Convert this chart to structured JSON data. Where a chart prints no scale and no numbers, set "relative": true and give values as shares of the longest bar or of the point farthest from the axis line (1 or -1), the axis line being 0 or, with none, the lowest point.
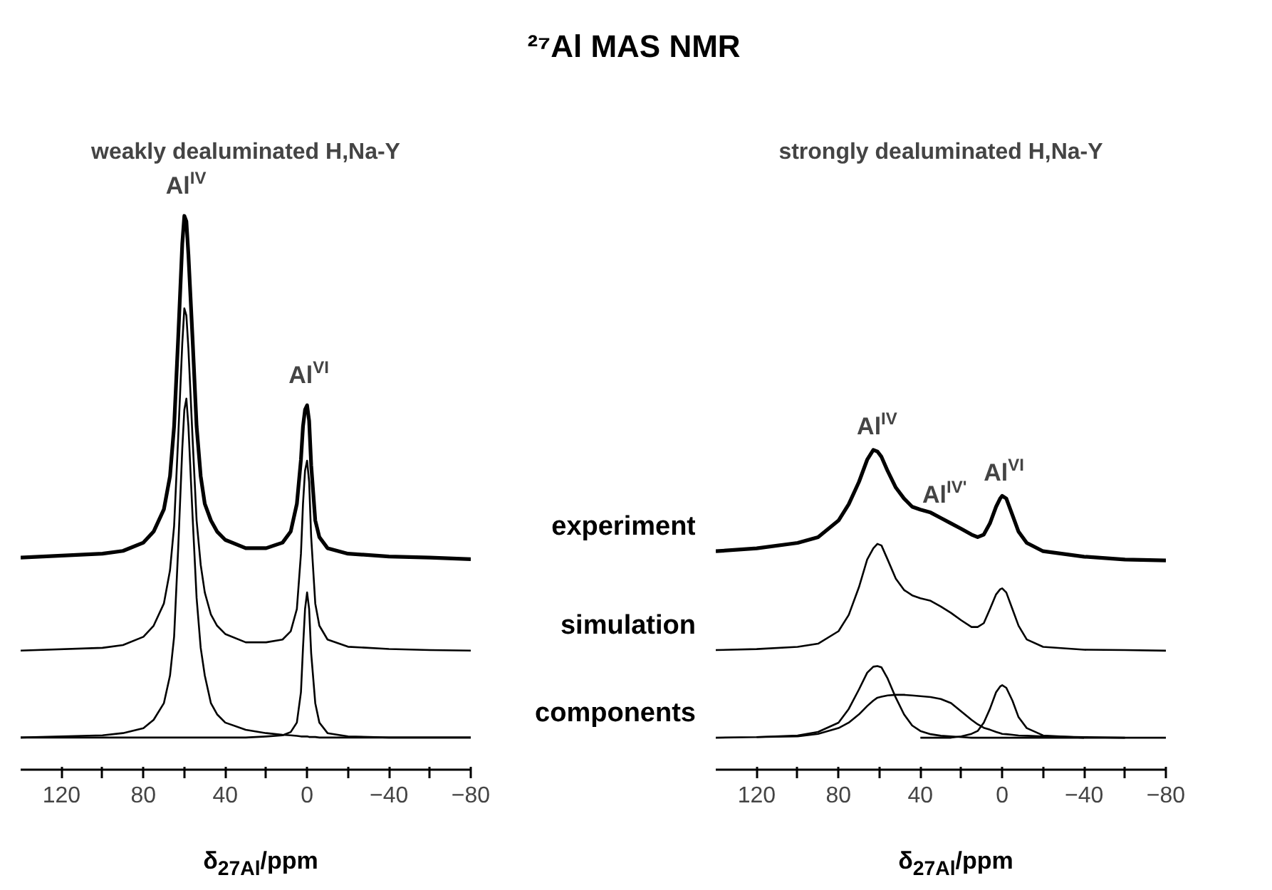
{
  "chart_data": [
    {
      "type": "line",
      "title": "weakly dealuminated H,Na-Y",
      "xlabel": "δ$_{27Al}$/ppm",
      "relative": true,
      "grid": false,
      "tick_labels": "x",
      "xlim": [
        140,
        -80
      ],
      "xticks": [
        120,
        {
          "value": 100,
          "label": null
        },
        80,
        {
          "value": 60,
          "label": null
        },
        40,
        {
          "value": 20,
          "label": null
        },
        0,
        {
          "value": -20,
          "label": null
        },
        -40,
        {
          "value": -60,
          "label": null
        },
        -80
      ],
      "annotations": [
        "²⁷Al MAS NMR",
        {
          "text": "Al$^{IV}$",
          "x": 60,
          "y": 1.0
        },
        {
          "text": "Al$^{VI}$",
          "x": 0,
          "y": 0.658
        }
      ],
      "x": [
        140,
        100,
        90,
        80,
        75,
        70,
        67,
        65,
        63,
        61,
        60,
        59,
        58,
        56,
        54,
        52,
        50,
        47,
        44,
        40,
        30,
        20,
        12,
        8,
        5,
        3,
        2,
        1,
        0,
        -1,
        -2,
        -4,
        -6,
        -10,
        -20,
        -40,
        -60,
        -80
      ],
      "series": [
        {
          "color": "#000000",
          "values": [
            0.383,
            0.39,
            0.395,
            0.41,
            0.43,
            0.47,
            0.53,
            0.62,
            0.78,
            0.95,
            1.0,
            0.99,
            0.93,
            0.78,
            0.62,
            0.53,
            0.48,
            0.45,
            0.43,
            0.415,
            0.4,
            0.4,
            0.41,
            0.43,
            0.48,
            0.56,
            0.62,
            0.65,
            0.658,
            0.63,
            0.55,
            0.45,
            0.42,
            0.4,
            0.39,
            0.385,
            0.383,
            0.38
          ]
        },
        {
          "color": "#000000",
          "values": [
            0.215,
            0.22,
            0.225,
            0.24,
            0.26,
            0.3,
            0.36,
            0.44,
            0.6,
            0.77,
            0.833,
            0.82,
            0.76,
            0.6,
            0.45,
            0.37,
            0.32,
            0.28,
            0.26,
            0.245,
            0.23,
            0.23,
            0.235,
            0.25,
            0.29,
            0.39,
            0.48,
            0.54,
            0.558,
            0.52,
            0.42,
            0.3,
            0.26,
            0.235,
            0.222,
            0.218,
            0.216,
            0.215
          ]
        },
        {
          "color": "#000000",
          "values": [
            0.058,
            0.062,
            0.066,
            0.075,
            0.09,
            0.12,
            0.17,
            0.24,
            0.4,
            0.58,
            0.65,
            0.67,
            0.62,
            0.46,
            0.31,
            0.22,
            0.17,
            0.12,
            0.1,
            0.085,
            0.072,
            0.066,
            0.063,
            0.062,
            0.061,
            0.06,
            0.06,
            0.06,
            0.06,
            0.059,
            0.059,
            0.059,
            0.058,
            0.058,
            0.058,
            0.058,
            0.058,
            0.058
          ]
        },
        {
          "color": "#000000",
          "values": [
            0.058,
            0.058,
            0.058,
            0.058,
            0.058,
            0.058,
            0.058,
            0.058,
            0.058,
            0.058,
            0.058,
            0.058,
            0.058,
            0.058,
            0.058,
            0.058,
            0.058,
            0.058,
            0.058,
            0.058,
            0.058,
            0.06,
            0.062,
            0.068,
            0.085,
            0.14,
            0.22,
            0.29,
            0.32,
            0.29,
            0.21,
            0.12,
            0.085,
            0.066,
            0.06,
            0.058,
            0.058,
            0.058
          ]
        }
      ]
    },
    {
      "type": "line",
      "title": "strongly dealuminated H,Na-Y",
      "xlabel": "δ$_{27Al}$/ppm",
      "relative": true,
      "grid": false,
      "tick_labels": "x",
      "xlim": [
        140,
        -80
      ],
      "xticks": [
        120,
        {
          "value": 100,
          "label": null
        },
        80,
        {
          "value": 60,
          "label": null
        },
        40,
        {
          "value": 20,
          "label": null
        },
        0,
        {
          "value": -20,
          "label": null
        },
        -40,
        {
          "value": -60,
          "label": null
        },
        -80
      ],
      "annotations": [
        {
          "text": "Al$^{IV}$",
          "x": 62,
          "y": 1.0
        },
        {
          "text": "Al$^{IV'}$",
          "x": 30,
          "y": 0.787
        },
        {
          "text": "Al$^{VI}$",
          "x": 0,
          "y": 0.856
        }
      ],
      "x": [
        140,
        120,
        100,
        90,
        80,
        75,
        70,
        66,
        63,
        61,
        59,
        56,
        52,
        48,
        44,
        40,
        35,
        30,
        25,
        20,
        15,
        12,
        9,
        6,
        3,
        1,
        0,
        -2,
        -5,
        -8,
        -12,
        -20,
        -40,
        -60,
        -80
      ],
      "series": [
        {
          "name": "experiment",
          "color": "#000000",
          "values": [
            0.683,
            0.692,
            0.709,
            0.727,
            0.779,
            0.83,
            0.9,
            0.969,
            1.0,
            0.995,
            0.978,
            0.934,
            0.882,
            0.848,
            0.822,
            0.813,
            0.804,
            0.787,
            0.77,
            0.753,
            0.735,
            0.727,
            0.735,
            0.77,
            0.822,
            0.848,
            0.856,
            0.848,
            0.796,
            0.744,
            0.709,
            0.683,
            0.666,
            0.657,
            0.654
          ]
        },
        {
          "name": "simulation",
          "color": "#000000",
          "values": [
            0.374,
            0.377,
            0.384,
            0.394,
            0.433,
            0.484,
            0.571,
            0.657,
            0.692,
            0.706,
            0.701,
            0.657,
            0.597,
            0.562,
            0.545,
            0.536,
            0.528,
            0.51,
            0.49,
            0.467,
            0.446,
            0.446,
            0.458,
            0.502,
            0.548,
            0.564,
            0.567,
            0.554,
            0.502,
            0.45,
            0.407,
            0.384,
            0.375,
            0.374,
            0.372
          ]
        },
        {
          "name": "components",
          "color": "#000000",
          "values": [
            0.1,
            0.102,
            0.107,
            0.118,
            0.147,
            0.19,
            0.251,
            0.303,
            0.322,
            0.324,
            0.32,
            0.285,
            0.225,
            0.173,
            0.138,
            0.121,
            0.111,
            0.106,
            0.104,
            0.102,
            0.1,
            0.1,
            0.1,
            0.1,
            0.1,
            0.1,
            0.1,
            0.1,
            0.1,
            0.1,
            0.1,
            0.1,
            0.1,
            0.1,
            0.1
          ]
        },
        {
          "color": "#000000",
          "x": [
            120,
            100,
            90,
            80,
            75,
            70,
            66,
            63,
            61,
            59,
            56,
            52,
            48,
            44,
            40,
            35,
            30,
            25,
            20,
            15,
            12,
            9,
            6,
            3,
            1,
            0,
            -2,
            -5,
            -8,
            -12,
            -20,
            -40,
            -60
          ],
          "values": [
            0.102,
            0.104,
            0.112,
            0.13,
            0.147,
            0.173,
            0.199,
            0.216,
            0.225,
            0.228,
            0.232,
            0.234,
            0.234,
            0.232,
            0.23,
            0.227,
            0.221,
            0.208,
            0.182,
            0.156,
            0.142,
            0.131,
            0.125,
            0.118,
            0.114,
            0.112,
            0.111,
            0.109,
            0.107,
            0.106,
            0.104,
            0.102,
            0.1
          ]
        },
        {
          "color": "#000000",
          "x": [
            40,
            35,
            30,
            25,
            20,
            15,
            12,
            9,
            6,
            3,
            1,
            0,
            -2,
            -5,
            -8,
            -12,
            -20,
            -40
          ],
          "values": [
            0.1,
            0.1,
            0.1,
            0.1,
            0.104,
            0.112,
            0.121,
            0.147,
            0.19,
            0.242,
            0.26,
            0.264,
            0.256,
            0.216,
            0.164,
            0.13,
            0.107,
            0.1
          ]
        }
      ]
    }
  ]
}
